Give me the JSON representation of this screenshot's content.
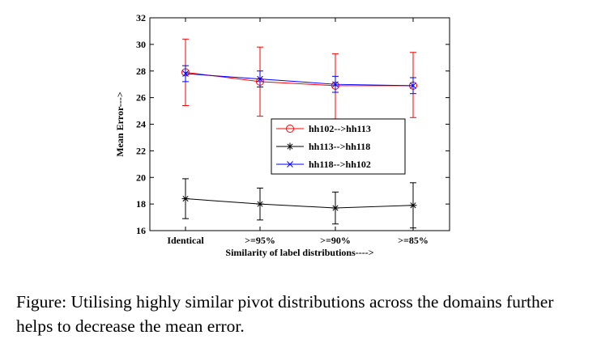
{
  "chart_data": {
    "type": "line",
    "categories": [
      "Identical",
      ">=95%",
      ">=90%",
      ">=85%"
    ],
    "xlabel": "Similarity of label distributions---->",
    "ylabel": "Mean Error--->",
    "ylim": [
      16,
      32
    ],
    "yticks": [
      16,
      18,
      20,
      22,
      24,
      26,
      28,
      30,
      32
    ],
    "grid": false,
    "legend_position": "center-right",
    "series": [
      {
        "name": "hh102-->hh113",
        "color": "#ff0000",
        "marker": "circle",
        "values": [
          27.9,
          27.2,
          26.9,
          26.9
        ],
        "err_low": [
          25.4,
          24.6,
          24.4,
          24.5
        ],
        "err_high": [
          30.4,
          29.8,
          29.3,
          29.4
        ]
      },
      {
        "name": "hh113-->hh118",
        "color": "#000000",
        "marker": "star",
        "values": [
          18.4,
          18.0,
          17.7,
          17.9
        ],
        "err_low": [
          16.9,
          16.8,
          16.5,
          16.2
        ],
        "err_high": [
          19.9,
          19.2,
          18.9,
          19.6
        ]
      },
      {
        "name": "hh118-->hh102",
        "color": "#0000ff",
        "marker": "x",
        "values": [
          27.8,
          27.4,
          27.0,
          26.9
        ],
        "err_low": [
          27.2,
          26.8,
          26.4,
          26.3
        ],
        "err_high": [
          28.4,
          28.0,
          27.6,
          27.5
        ]
      }
    ]
  },
  "caption": {
    "lead": "Figure:",
    "text": " Utilising highly similar pivot distributions across the domains further helps to decrease the mean error."
  }
}
